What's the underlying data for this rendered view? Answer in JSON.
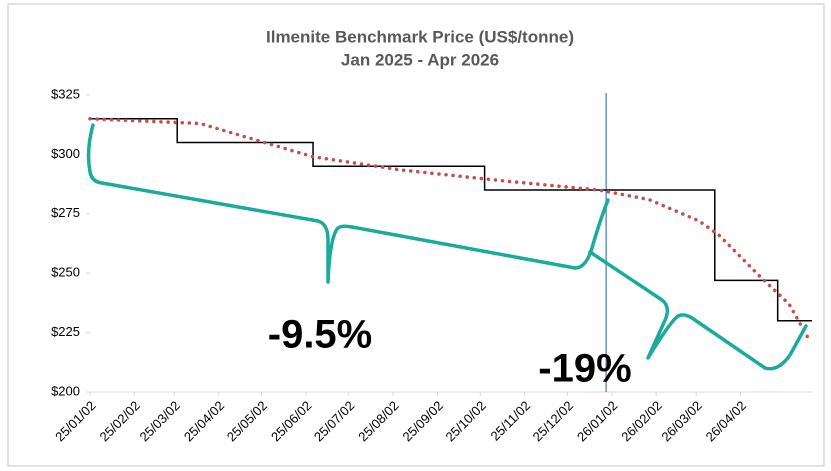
{
  "chart_data": {
    "type": "line",
    "title": "Ilmenite Benchmark Price (US$/tonne)",
    "subtitle": "Jan 2025 - Apr 2026",
    "xlim": [
      "25/01/02",
      "26/05/22"
    ],
    "xticks": [
      "25/01/02",
      "25/02/02",
      "25/03/02",
      "25/04/02",
      "25/05/02",
      "25/06/02",
      "25/07/02",
      "25/08/02",
      "25/09/02",
      "25/10/02",
      "25/11/02",
      "25/12/02",
      "26/01/02",
      "26/02/02",
      "26/03/02",
      "26/04/02"
    ],
    "ylim": [
      200,
      325
    ],
    "yticks": [
      {
        "value": 200,
        "label": "$200"
      },
      {
        "value": 225,
        "label": "$225"
      },
      {
        "value": 250,
        "label": "$250"
      },
      {
        "value": 275,
        "label": "$275"
      },
      {
        "value": 300,
        "label": "$300"
      },
      {
        "value": 325,
        "label": "$325"
      }
    ],
    "series": [
      {
        "color": "#000000",
        "step": true,
        "style": "solid",
        "x": [
          "25/01/02",
          "25/03/04",
          "25/06/07",
          "25/10/05",
          "26/03/15",
          "26/04/28",
          "26/05/22"
        ],
        "values": [
          315,
          305,
          295,
          285,
          247,
          230,
          230
        ]
      },
      {
        "color": "#c0504d",
        "step": false,
        "style": "dotted",
        "x": [
          "25/01/02",
          "25/03/20",
          "25/06/07",
          "25/08/07",
          "25/10/16",
          "25/12/24",
          "26/01/28",
          "26/03/04",
          "26/03/18",
          "26/04/15",
          "26/05/06",
          "26/05/20"
        ],
        "values": [
          315,
          313,
          299,
          293.5,
          289,
          285,
          281,
          272,
          266,
          249,
          237,
          222
        ]
      }
    ],
    "reference_line": {
      "x": "25/12/29",
      "color": "#4f81bd"
    },
    "annotations": [
      "-9.5%",
      "-19%"
    ]
  }
}
